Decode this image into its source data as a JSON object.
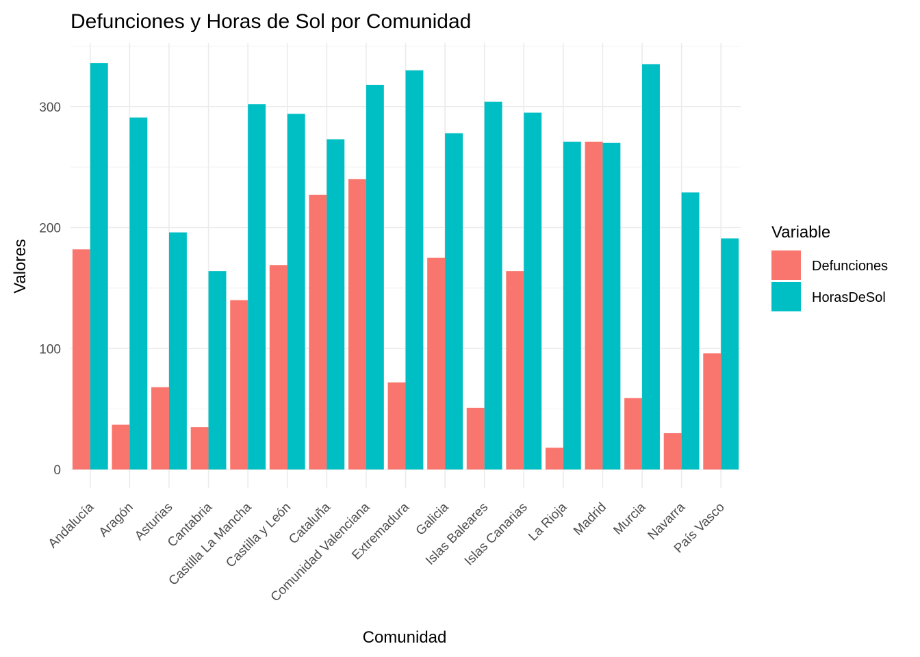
{
  "chart_data": {
    "type": "bar",
    "title": "Defunciones y Horas de Sol por Comunidad",
    "xlabel": "Comunidad",
    "ylabel": "Valores",
    "ylim": [
      0,
      350
    ],
    "yticks": [
      0,
      100,
      200,
      300
    ],
    "grid": true,
    "legend": {
      "title": "Variable",
      "position": "right"
    },
    "categories": [
      "Andalucía",
      "Aragón",
      "Asturias",
      "Cantabria",
      "Castilla La Mancha",
      "Castilla y León",
      "Cataluña",
      "Comunidad Valenciana",
      "Extremadura",
      "Galicia",
      "Islas Baleares",
      "Islas Canarias",
      "La Rioja",
      "Madrid",
      "Murcia",
      "Navarra",
      "País Vasco"
    ],
    "series": [
      {
        "name": "Defunciones",
        "color": "#F8766D",
        "values": [
          182,
          37,
          68,
          35,
          140,
          169,
          227,
          240,
          72,
          175,
          51,
          164,
          18,
          271,
          59,
          30,
          96
        ]
      },
      {
        "name": "HorasDeSol",
        "color": "#00BFC4",
        "values": [
          336,
          291,
          196,
          164,
          302,
          294,
          273,
          318,
          330,
          278,
          304,
          295,
          271,
          270,
          335,
          229,
          191
        ]
      }
    ]
  }
}
